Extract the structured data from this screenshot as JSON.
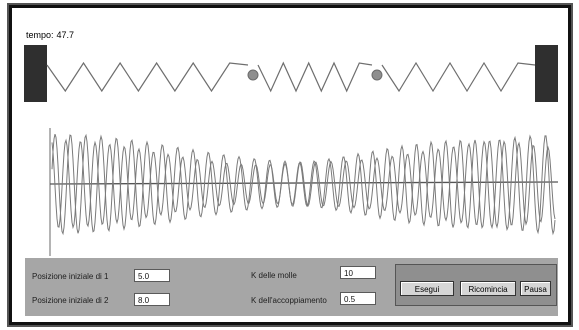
{
  "time": {
    "label": "tempo:",
    "value": "47.7"
  },
  "controls": {
    "pos1_label": "Posizione iniziale di 1",
    "pos1_value": "5.0",
    "pos2_label": "Posizione iniziale di 2",
    "pos2_value": "8.0",
    "k_label": "K delle molle",
    "k_value": "10",
    "coupling_label": "K dell'accoppiamento",
    "coupling_value": "0.5"
  },
  "buttons": {
    "start": "Esegui",
    "restart": "Ricomincia",
    "pause": "Pausa"
  },
  "colors": {
    "spring": "#6e6e6e",
    "mass": "#8e8e8e",
    "wall": "#2f2f2f",
    "plot_line": "#7a7a7a",
    "panel": "#a6a6a6"
  }
}
